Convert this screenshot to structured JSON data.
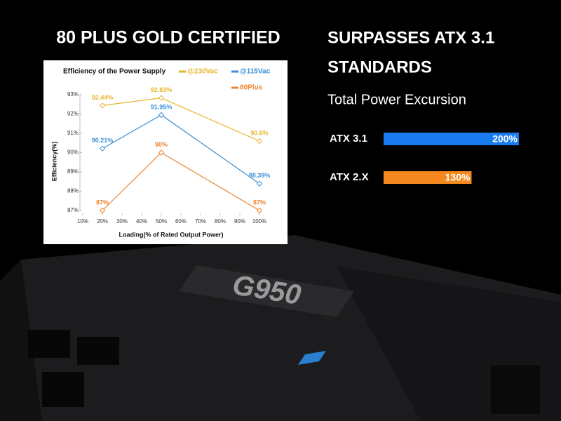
{
  "header": {
    "left": "80 PLUS GOLD CERTIFIED",
    "right": [
      "SURPASSES ATX 3.1",
      "STANDARDS"
    ]
  },
  "product": {
    "logo": "G950"
  },
  "chart_data": [
    {
      "type": "line",
      "title": "Efficiency of the Power Supply",
      "x_label": "Loading(% of Rated Output Power)",
      "y_label": "Efficiency(%)",
      "x": [
        20,
        50,
        100
      ],
      "xlim": [
        10,
        100
      ],
      "xticks": [
        {
          "value": 10,
          "label": "10%"
        },
        {
          "value": 20,
          "label": "20%"
        },
        {
          "value": 30,
          "label": "30%"
        },
        {
          "value": 40,
          "label": "40%"
        },
        {
          "value": 50,
          "label": "50%"
        },
        {
          "value": 60,
          "label": "60%"
        },
        {
          "value": 70,
          "label": "70%"
        },
        {
          "value": 80,
          "label": "80%"
        },
        {
          "value": 90,
          "label": "90%"
        },
        {
          "value": 100,
          "label": "100%"
        }
      ],
      "ylim": [
        87,
        93
      ],
      "yticks": [
        {
          "value": 87,
          "label": "87%"
        },
        {
          "value": 88,
          "label": "88%"
        },
        {
          "value": 89,
          "label": "89%"
        },
        {
          "value": 90,
          "label": "90%"
        },
        {
          "value": 91,
          "label": "91%"
        },
        {
          "value": 92,
          "label": "92%"
        },
        {
          "value": 93,
          "label": "93%"
        }
      ],
      "series": [
        {
          "name": "@230Vac",
          "color": "#e6b52c",
          "values": [
            92.44,
            92.83,
            90.6
          ],
          "value_labels": [
            "92.44%",
            "92.83%",
            "90.6%"
          ]
        },
        {
          "name": "@115Vac",
          "color": "#3a8fd6",
          "values": [
            90.21,
            91.95,
            88.39
          ],
          "value_labels": [
            "90.21%",
            "91.95%",
            "88.39%"
          ]
        },
        {
          "name": "80Plus",
          "color": "#ec8530",
          "values": [
            87,
            90,
            87
          ],
          "value_labels": [
            "87%",
            "90%",
            "87%"
          ]
        }
      ]
    },
    {
      "type": "bar",
      "title": "Total Power Excursion",
      "categories": [
        "ATX 3.1",
        "ATX 2.X"
      ],
      "values": [
        200,
        130
      ],
      "value_labels": [
        "200%",
        "130%"
      ],
      "colors": [
        "#1a7cf0",
        "#f5891f"
      ]
    }
  ]
}
